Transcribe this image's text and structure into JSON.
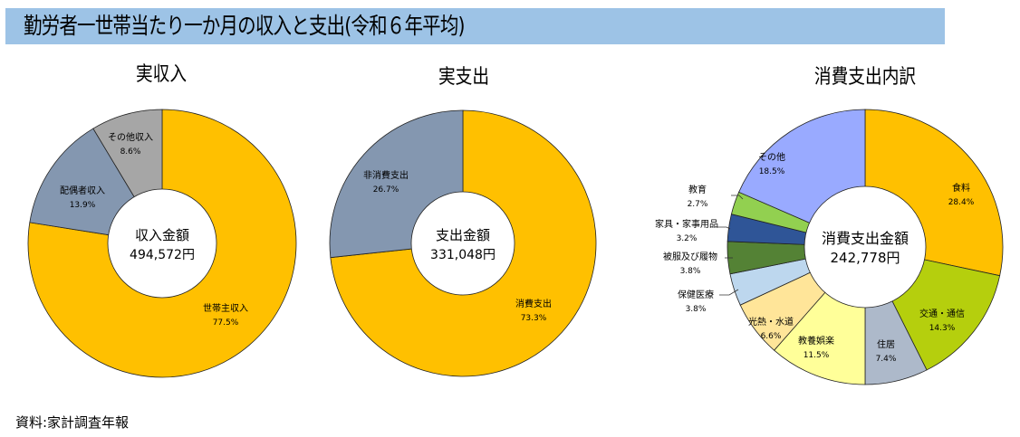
{
  "title": "勤労者一世帯当たり一か月の収入と支出(令和６年平均)",
  "source": "資料:家計調査年報",
  "colors": {
    "title_bar": "#9DC3E6",
    "gold": "#FFC000",
    "slate": "#8497B0",
    "gray": "#A6A6A6"
  },
  "chart_data": [
    {
      "type": "pie",
      "variant": "donut",
      "title": "実収入",
      "center_label": "収入金額",
      "center_value": "494,572円",
      "start_angle_deg": 0,
      "direction": "clockwise",
      "slices": [
        {
          "label": "世帯主収入",
          "value": 77.5,
          "pct_label": "77.5%",
          "color": "#FFC000"
        },
        {
          "label": "配偶者収入",
          "value": 13.9,
          "pct_label": "13.9%",
          "color": "#8497B0"
        },
        {
          "label": "その他収入",
          "value": 8.6,
          "pct_label": "8.6%",
          "color": "#A6A6A6"
        }
      ]
    },
    {
      "type": "pie",
      "variant": "donut",
      "title": "実支出",
      "center_label": "支出金額",
      "center_value": "331,048円",
      "start_angle_deg": 0,
      "direction": "clockwise",
      "slices": [
        {
          "label": "消費支出",
          "value": 73.3,
          "pct_label": "73.3%",
          "color": "#FFC000"
        },
        {
          "label": "非消費支出",
          "value": 26.7,
          "pct_label": "26.7%",
          "color": "#8497B0"
        }
      ]
    },
    {
      "type": "pie",
      "variant": "donut",
      "title": "消費支出内訳",
      "center_label": "消費支出金額",
      "center_value": "242,778円",
      "start_angle_deg": 0,
      "direction": "clockwise",
      "slices": [
        {
          "label": "食料",
          "value": 28.4,
          "pct_label": "28.4%",
          "color": "#FFC000"
        },
        {
          "label": "交通・通信",
          "value": 14.3,
          "pct_label": "14.3%",
          "color": "#B5CF0D"
        },
        {
          "label": "住居",
          "value": 7.4,
          "pct_label": "7.4%",
          "color": "#ADB9CA"
        },
        {
          "label": "教養娯楽",
          "value": 11.5,
          "pct_label": "11.5%",
          "color": "#FFFF99"
        },
        {
          "label": "光熱・水道",
          "value": 6.6,
          "pct_label": "6.6%",
          "color": "#FFE599"
        },
        {
          "label": "保健医療",
          "value": 3.8,
          "pct_label": "3.8%",
          "color": "#BDD7EE"
        },
        {
          "label": "被服及び履物",
          "value": 3.8,
          "pct_label": "3.8%",
          "color": "#548235"
        },
        {
          "label": "家具・家事用品",
          "value": 3.2,
          "pct_label": "3.2%",
          "color": "#2F5597"
        },
        {
          "label": "教育",
          "value": 2.7,
          "pct_label": "2.7%",
          "color": "#92D050"
        },
        {
          "label": "その他",
          "value": 18.5,
          "pct_label": "18.5%",
          "color": "#99AAFF"
        }
      ]
    }
  ]
}
